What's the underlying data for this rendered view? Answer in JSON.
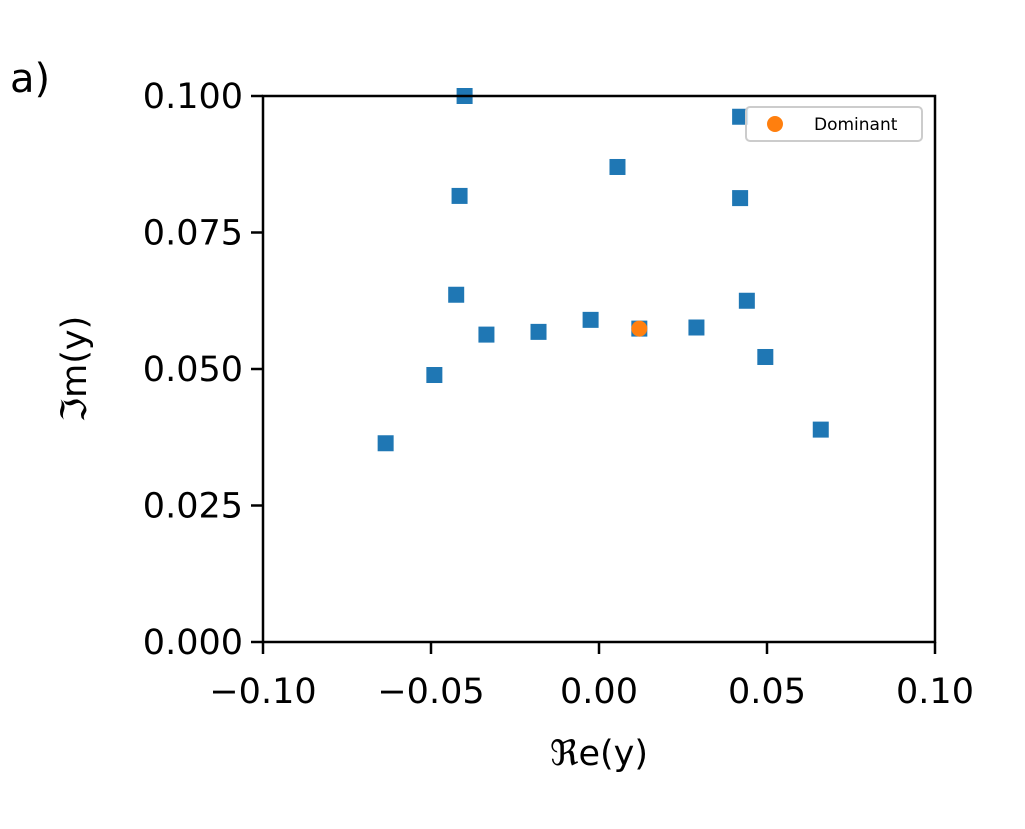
{
  "panel_label": "a)",
  "chart_data": {
    "type": "scatter",
    "xlabel": "ℜe(y)",
    "ylabel": "ℑm(y)",
    "xlim": [
      -0.1,
      0.1
    ],
    "ylim": [
      0.0,
      0.1
    ],
    "x_ticks": [
      -0.1,
      -0.05,
      0.0,
      0.05,
      0.1
    ],
    "x_tick_labels": [
      "−0.10",
      "−0.05",
      "0.00",
      "0.05",
      "0.10"
    ],
    "y_ticks": [
      0.0,
      0.025,
      0.05,
      0.075,
      0.1
    ],
    "y_tick_labels": [
      "0.000",
      "0.025",
      "0.050",
      "0.075",
      "0.100"
    ],
    "grid": false,
    "legend_position": "top-right",
    "series": [
      {
        "marker": "square",
        "color": "#1f77b4",
        "points": [
          [
            -0.0635,
            0.0364
          ],
          [
            -0.049,
            0.0489
          ],
          [
            -0.0425,
            0.0636
          ],
          [
            -0.0415,
            0.0817
          ],
          [
            -0.04,
            0.1
          ],
          [
            -0.0335,
            0.0563
          ],
          [
            -0.018,
            0.0568
          ],
          [
            -0.0025,
            0.059
          ],
          [
            0.0055,
            0.087
          ],
          [
            0.012,
            0.0574
          ],
          [
            0.029,
            0.0576
          ],
          [
            0.042,
            0.0962
          ],
          [
            0.042,
            0.0813
          ],
          [
            0.044,
            0.0625
          ],
          [
            0.0495,
            0.0522
          ],
          [
            0.066,
            0.0389
          ]
        ]
      },
      {
        "name": "Dominant",
        "marker": "circle",
        "color": "#ff7f0e",
        "points": [
          [
            0.012,
            0.0574
          ]
        ]
      }
    ]
  }
}
